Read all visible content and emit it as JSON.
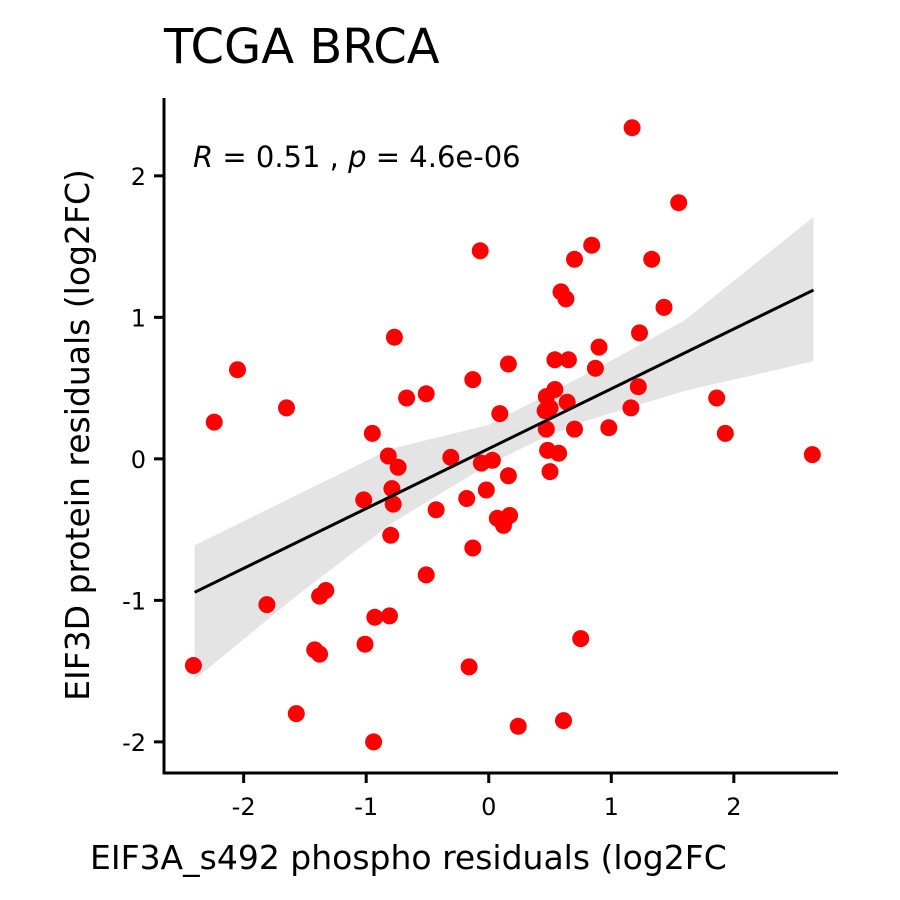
{
  "chart_data": {
    "type": "scatter",
    "title": "TCGA BRCA",
    "xlabel": "EIF3A_s492 phospho residuals (log2FC",
    "ylabel": "EIF3D protein residuals (log2FC)",
    "annotation": {
      "r_symbol": "R",
      "r_text": " = 0.51 , ",
      "p_symbol": "p",
      "p_text": " = 4.6e-06"
    },
    "xlim": [
      -2.65,
      2.85
    ],
    "ylim": [
      -2.22,
      2.55
    ],
    "x_ticks": [
      -2,
      -1,
      0,
      1,
      2
    ],
    "x_tick_labels": [
      "-2",
      "-1",
      "0",
      "1",
      "2"
    ],
    "y_ticks": [
      -2,
      -1,
      0,
      1,
      2
    ],
    "y_tick_labels": [
      "-2",
      "-1",
      "0",
      "1",
      "2"
    ],
    "grid": false,
    "legend": "none",
    "point_color": "#ff0000",
    "line_color": "#000000",
    "band_color": "#d9d9d9",
    "regression": {
      "x_range": [
        -2.4,
        2.65
      ],
      "intercept": 0.072,
      "slope": 0.423,
      "ci_lower": [
        [
          -2.4,
          -1.56
        ],
        [
          -1.6,
          -0.99
        ],
        [
          -0.8,
          -0.46
        ],
        [
          0.0,
          -0.04
        ],
        [
          0.4,
          0.13
        ],
        [
          0.8,
          0.27
        ],
        [
          1.6,
          0.48
        ],
        [
          2.65,
          0.69
        ]
      ],
      "ci_upper": [
        [
          -2.4,
          -0.61
        ],
        [
          -1.6,
          -0.27
        ],
        [
          -0.8,
          0.07
        ],
        [
          0.0,
          0.24
        ],
        [
          0.4,
          0.42
        ],
        [
          0.8,
          0.6
        ],
        [
          1.6,
          0.98
        ],
        [
          2.65,
          1.71
        ]
      ]
    },
    "points": [
      {
        "x": 1.17,
        "y": 2.34
      },
      {
        "x": 1.55,
        "y": 1.81
      },
      {
        "x": -0.07,
        "y": 1.47
      },
      {
        "x": 0.84,
        "y": 1.51
      },
      {
        "x": 0.7,
        "y": 1.41
      },
      {
        "x": 1.33,
        "y": 1.41
      },
      {
        "x": 0.59,
        "y": 1.18
      },
      {
        "x": 0.63,
        "y": 1.13
      },
      {
        "x": 1.43,
        "y": 1.07
      },
      {
        "x": -0.77,
        "y": 0.86
      },
      {
        "x": 1.23,
        "y": 0.89
      },
      {
        "x": 0.9,
        "y": 0.79
      },
      {
        "x": 0.54,
        "y": 0.7
      },
      {
        "x": 0.65,
        "y": 0.7
      },
      {
        "x": 0.16,
        "y": 0.67
      },
      {
        "x": 0.87,
        "y": 0.64
      },
      {
        "x": -2.05,
        "y": 0.63
      },
      {
        "x": -0.13,
        "y": 0.56
      },
      {
        "x": 1.22,
        "y": 0.51
      },
      {
        "x": 0.54,
        "y": 0.49
      },
      {
        "x": -0.51,
        "y": 0.46
      },
      {
        "x": -0.67,
        "y": 0.43
      },
      {
        "x": 0.47,
        "y": 0.44
      },
      {
        "x": 1.86,
        "y": 0.43
      },
      {
        "x": 0.64,
        "y": 0.4
      },
      {
        "x": 0.5,
        "y": 0.36
      },
      {
        "x": 1.16,
        "y": 0.36
      },
      {
        "x": -1.65,
        "y": 0.36
      },
      {
        "x": 0.09,
        "y": 0.32
      },
      {
        "x": 0.46,
        "y": 0.34
      },
      {
        "x": -2.24,
        "y": 0.26
      },
      {
        "x": 0.98,
        "y": 0.22
      },
      {
        "x": 0.7,
        "y": 0.21
      },
      {
        "x": 0.47,
        "y": 0.21
      },
      {
        "x": 1.93,
        "y": 0.18
      },
      {
        "x": -0.95,
        "y": 0.18
      },
      {
        "x": 2.64,
        "y": 0.03
      },
      {
        "x": -0.82,
        "y": 0.02
      },
      {
        "x": -0.31,
        "y": 0.01
      },
      {
        "x": 0.48,
        "y": 0.06
      },
      {
        "x": 0.57,
        "y": 0.04
      },
      {
        "x": 0.03,
        "y": -0.01
      },
      {
        "x": -0.06,
        "y": -0.03
      },
      {
        "x": -0.74,
        "y": -0.06
      },
      {
        "x": 0.5,
        "y": -0.09
      },
      {
        "x": 0.16,
        "y": -0.12
      },
      {
        "x": -0.79,
        "y": -0.21
      },
      {
        "x": -0.02,
        "y": -0.22
      },
      {
        "x": -0.18,
        "y": -0.28
      },
      {
        "x": -1.02,
        "y": -0.29
      },
      {
        "x": -0.78,
        "y": -0.32
      },
      {
        "x": -0.43,
        "y": -0.36
      },
      {
        "x": 0.17,
        "y": -0.4
      },
      {
        "x": 0.07,
        "y": -0.42
      },
      {
        "x": 0.12,
        "y": -0.47
      },
      {
        "x": -0.8,
        "y": -0.54
      },
      {
        "x": -0.13,
        "y": -0.63
      },
      {
        "x": -0.51,
        "y": -0.82
      },
      {
        "x": -1.33,
        "y": -0.93
      },
      {
        "x": -1.38,
        "y": -0.97
      },
      {
        "x": -1.81,
        "y": -1.03
      },
      {
        "x": -0.93,
        "y": -1.12
      },
      {
        "x": -0.81,
        "y": -1.11
      },
      {
        "x": -1.01,
        "y": -1.31
      },
      {
        "x": -1.42,
        "y": -1.35
      },
      {
        "x": -1.38,
        "y": -1.38
      },
      {
        "x": 0.75,
        "y": -1.27
      },
      {
        "x": -0.16,
        "y": -1.47
      },
      {
        "x": -2.41,
        "y": -1.46
      },
      {
        "x": -1.57,
        "y": -1.8
      },
      {
        "x": 0.61,
        "y": -1.85
      },
      {
        "x": 0.24,
        "y": -1.89
      },
      {
        "x": -0.94,
        "y": -2.0
      }
    ]
  }
}
